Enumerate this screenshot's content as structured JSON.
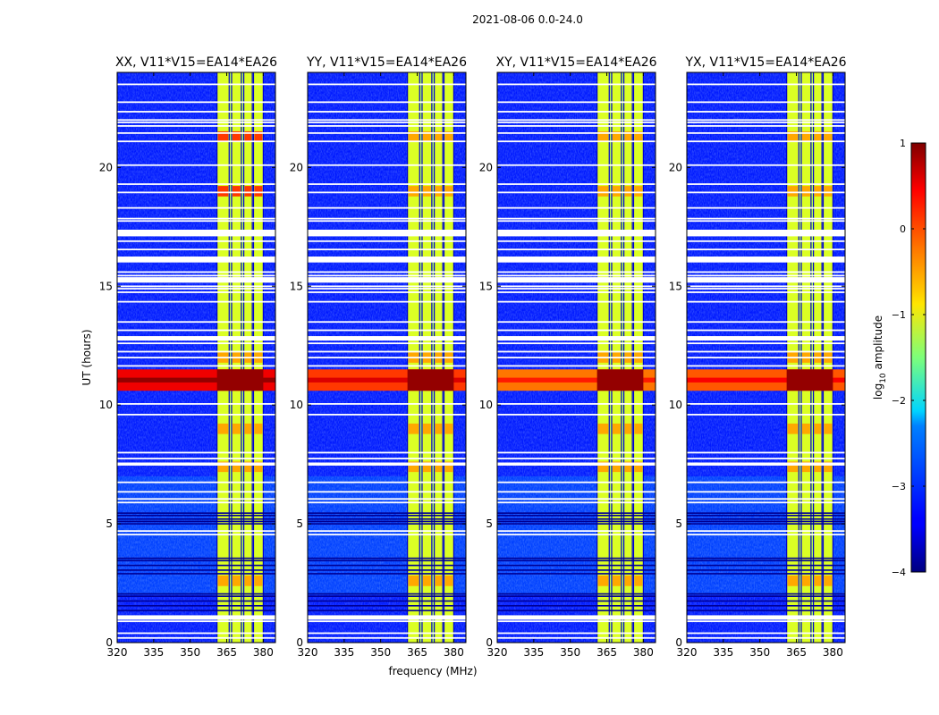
{
  "chart_data": {
    "type": "heatmap",
    "suptitle": "2021-08-06 0.0-24.0",
    "xlabel": "frequency (MHz)",
    "ylabel": "UT (hours)",
    "xlim": [
      320,
      385
    ],
    "ylim": [
      0,
      24
    ],
    "xticks": [
      320,
      335,
      350,
      365,
      380
    ],
    "yticks": [
      0,
      5,
      10,
      15,
      20
    ],
    "panels": [
      {
        "title": "XX, V11*V15=EA14*EA26",
        "broadband_log10": 0.45
      },
      {
        "title": "YY, V11*V15=EA14*EA26",
        "broadband_log10": 0.1
      },
      {
        "title": "XY, V11*V15=EA14*EA26",
        "broadband_log10": -0.2
      },
      {
        "title": "YX, V11*V15=EA14*EA26",
        "broadband_log10": -0.05
      }
    ],
    "rfi_band_mhz": [
      361,
      380
    ],
    "rfi_channel_edges_mhz": [
      361,
      366,
      367,
      371,
      372,
      375.5,
      376,
      380
    ],
    "broadband_event_hours": [
      10.6,
      11.5
    ],
    "flagged_rows_hours": [
      0.2,
      0.4,
      0.9,
      1.0,
      1.35,
      1.55,
      1.75,
      1.95,
      2.05,
      2.9,
      3.05,
      3.25,
      3.45,
      3.55,
      4.55,
      4.7,
      5.0,
      5.1,
      5.2,
      5.35,
      5.45,
      5.9,
      6.05,
      6.35,
      6.75,
      7.55,
      7.75,
      8.0,
      9.6,
      10.05,
      11.65,
      12.0,
      12.25,
      12.6,
      12.75,
      12.85,
      13.15,
      13.5,
      14.35,
      14.75,
      14.9,
      15.0,
      15.35,
      15.45,
      15.6,
      16.1,
      16.2,
      16.55,
      16.9,
      17.2,
      17.35,
      17.75,
      17.85,
      18.3,
      18.95,
      19.3,
      20.1,
      21.1,
      21.45,
      21.75,
      21.9,
      22.0,
      22.35,
      22.75,
      23.5
    ],
    "colorbar": {
      "label": "log$_{10}$ amplitude",
      "range": [
        -4,
        1
      ],
      "ticks": [
        1,
        0,
        -1,
        -2,
        -3,
        -4
      ],
      "tick_labels": [
        "1",
        "0",
        "−1",
        "−2",
        "−3",
        "−4"
      ]
    }
  }
}
